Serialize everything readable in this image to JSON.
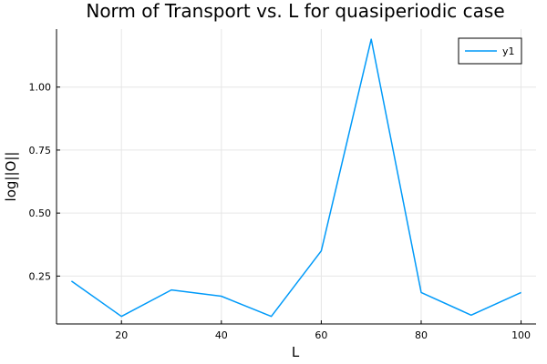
{
  "chart_data": {
    "type": "line",
    "title": "Norm of Transport vs. L for quasiperiodic case",
    "xlabel": "L",
    "ylabel": "log||O||",
    "xlim": [
      7,
      103
    ],
    "ylim": [
      0.06,
      1.23
    ],
    "xticks": [
      20,
      40,
      60,
      80,
      100
    ],
    "yticks": [
      0.25,
      0.5,
      0.75,
      1.0
    ],
    "xtick_labels": [
      "20",
      "40",
      "60",
      "80",
      "100"
    ],
    "ytick_labels": [
      "0.25",
      "0.50",
      "0.75",
      "1.00"
    ],
    "grid": true,
    "legend_position": "top-right",
    "series": [
      {
        "name": "y1",
        "color": "#009af9",
        "x": [
          10,
          20,
          30,
          40,
          50,
          60,
          70,
          80,
          90,
          100
        ],
        "y": [
          0.23,
          0.09,
          0.195,
          0.17,
          0.09,
          0.35,
          1.19,
          0.185,
          0.095,
          0.185
        ]
      }
    ]
  }
}
